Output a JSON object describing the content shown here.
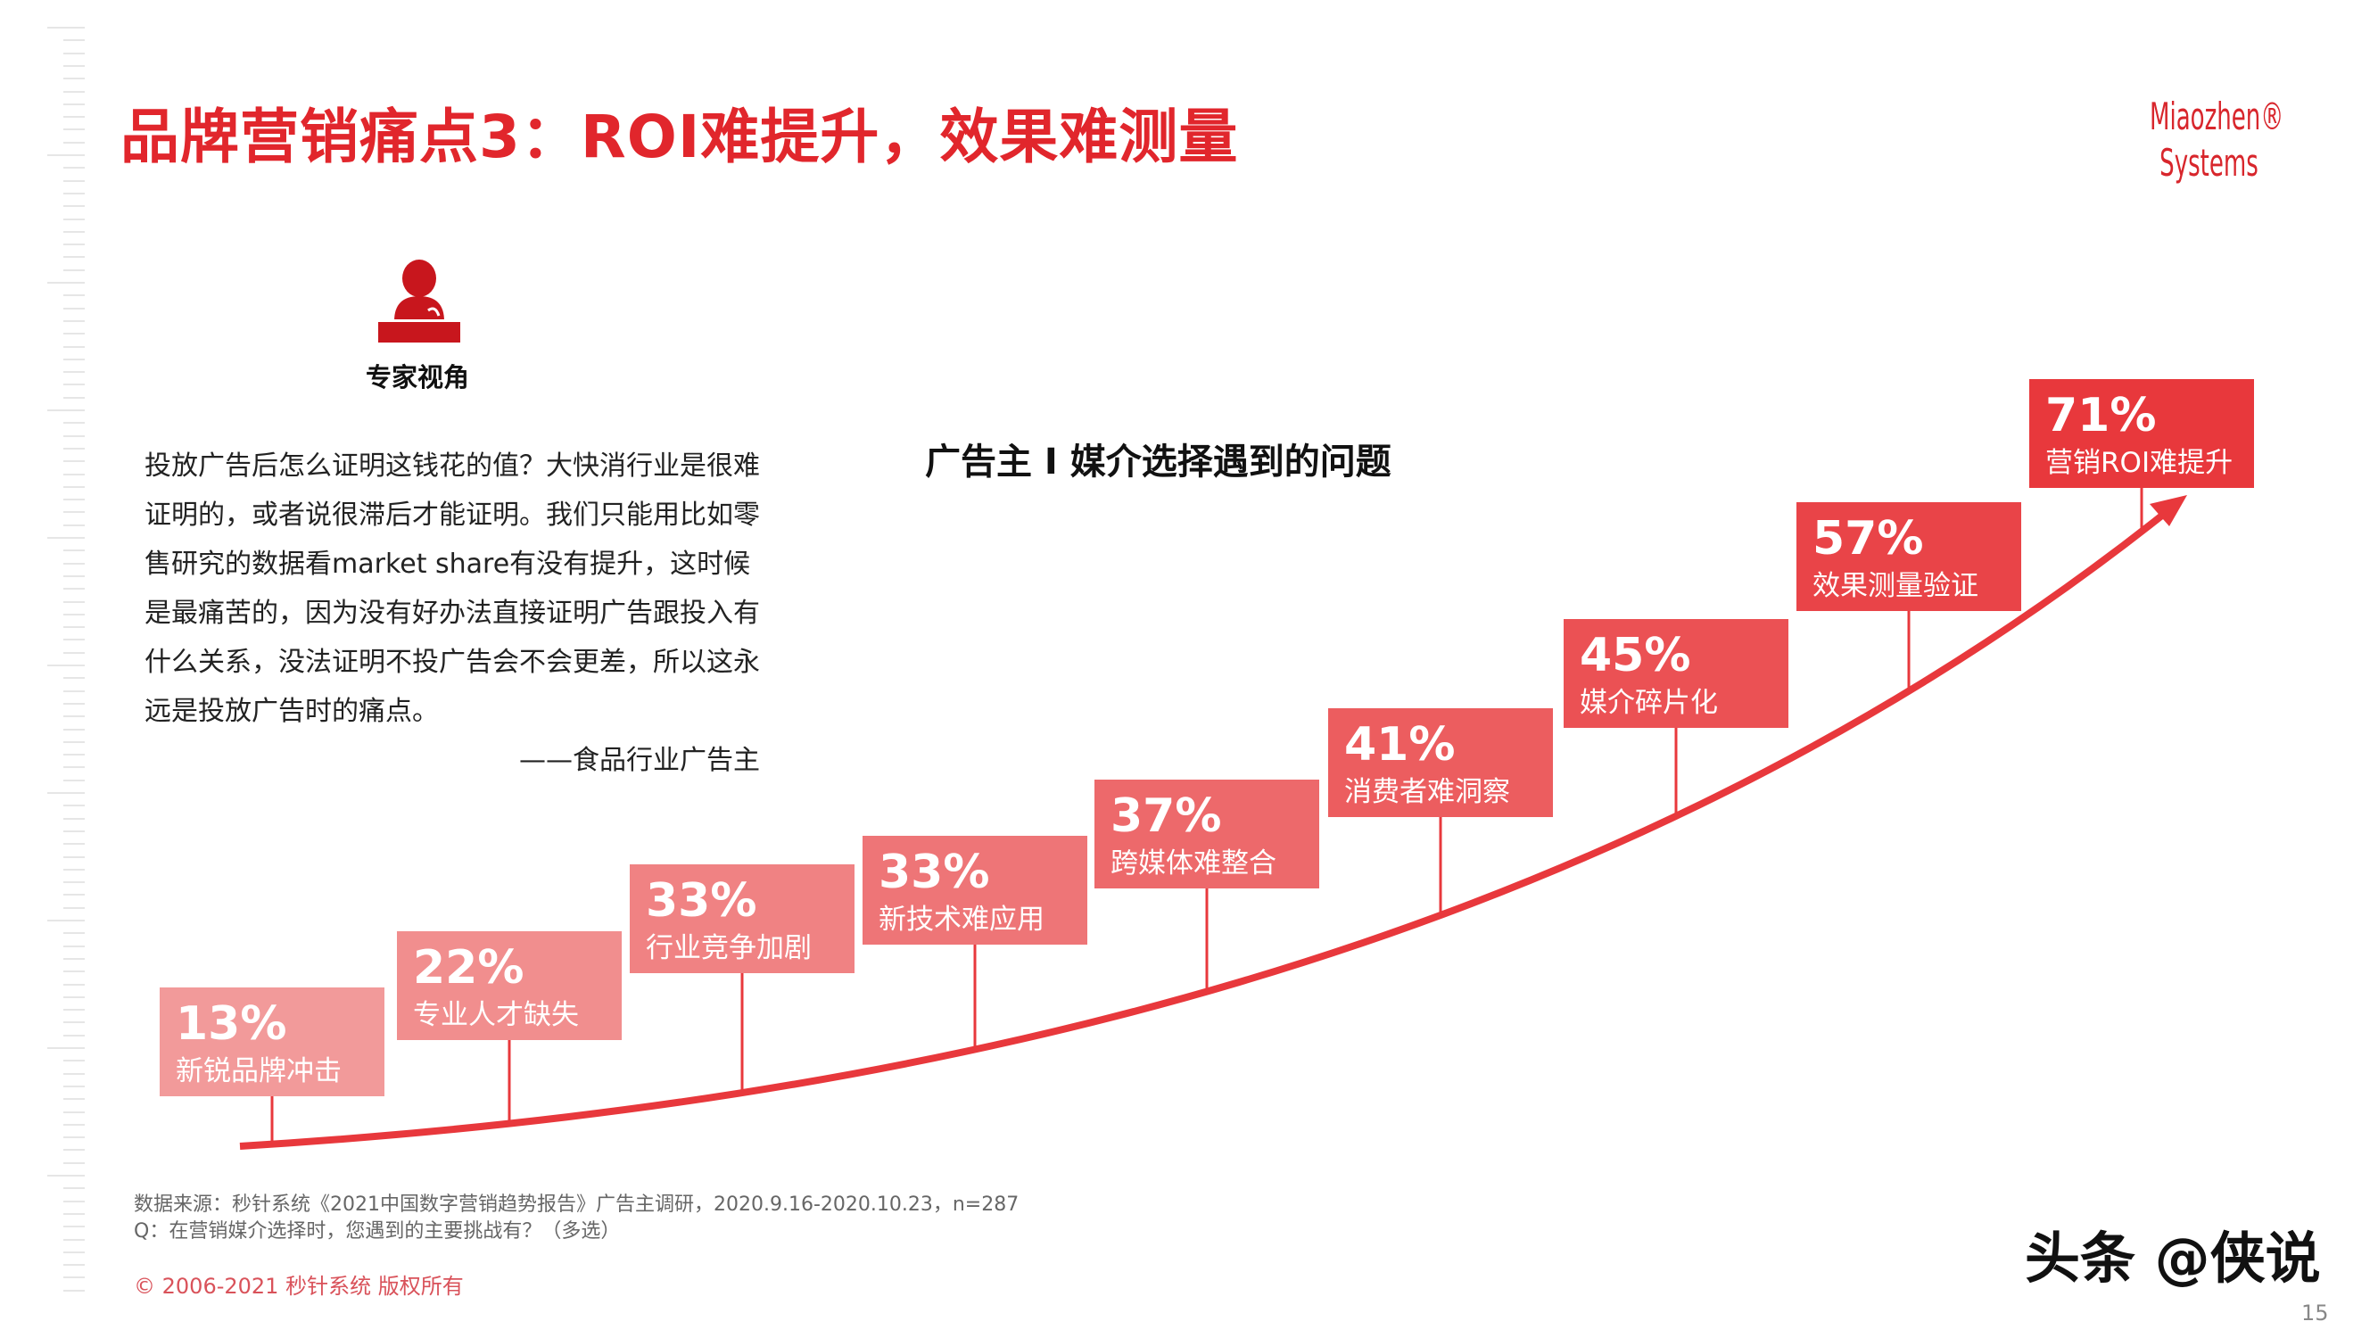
{
  "title": "品牌营销痛点3：ROI难提升，效果难测量",
  "logo": {
    "line1": "Miaozhen®",
    "line2": "Systems"
  },
  "expert": {
    "label": "专家视角",
    "icon": "speaker-at-podium-icon",
    "quote": "投放广告后怎么证明这钱花的值？大快消行业是很难证明的，或者说很滞后才能证明。我们只能用比如零售研究的数据看market share有没有提升，这时候是最痛苦的，因为没有好办法直接证明广告跟投入有什么关系，没法证明不投广告会不会更差，所以这永远是投放广告时的痛点。",
    "source": "——食品行业广告主"
  },
  "chart_data": {
    "type": "bar",
    "title": "广告主 I 媒介选择遇到的问题",
    "categories": [
      "新锐品牌冲击",
      "专业人才缺失",
      "行业竞争加剧",
      "新技术难应用",
      "跨媒体难整合",
      "消费者难洞察",
      "媒介碎片化",
      "效果测量验证",
      "营销ROI难提升"
    ],
    "values": [
      13,
      22,
      33,
      33,
      37,
      41,
      45,
      57,
      71
    ],
    "value_labels": [
      "13%",
      "22%",
      "33%",
      "33%",
      "37%",
      "41%",
      "45%",
      "57%",
      "71%"
    ],
    "colors": {
      "start": "#f29a9a",
      "end": "#e8383c",
      "curve": "#e8383c"
    }
  },
  "footer": {
    "source": "数据来源：秒针系统《2021中国数字营销趋势报告》广告主调研，2020.9.16-2020.10.23，n=287",
    "question": "Q：在营销媒介选择时，您遇到的主要挑战有？（多选）",
    "copyright": "© 2006-2021 秒针系统 版权所有",
    "watermark": "头条 @侠说",
    "page_number": "15"
  }
}
